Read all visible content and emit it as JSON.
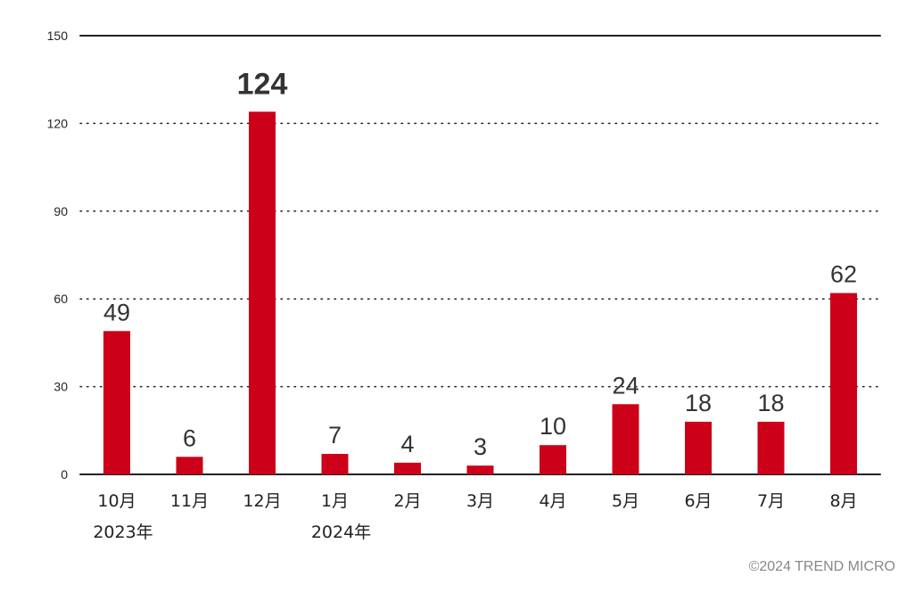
{
  "chart_data": {
    "type": "bar",
    "categories": [
      "10月",
      "11月",
      "12月",
      "1月",
      "2月",
      "3月",
      "4月",
      "5月",
      "6月",
      "7月",
      "8月"
    ],
    "year_labels": [
      {
        "category_index": 0,
        "label": "2023年"
      },
      {
        "category_index": 3,
        "label": "2024年"
      }
    ],
    "values": [
      49,
      6,
      124,
      7,
      4,
      3,
      10,
      24,
      18,
      18,
      62
    ],
    "data_labels": [
      "49",
      "6",
      "124",
      "7",
      "4",
      "3",
      "10",
      "24",
      "18",
      "18",
      "62"
    ],
    "highlight_index": 2,
    "ylim": [
      0,
      150
    ],
    "yticks": [
      0,
      30,
      60,
      90,
      120,
      150
    ],
    "ytick_labels": [
      "0",
      "30",
      "60",
      "90",
      "120",
      "150"
    ],
    "grid": "dotted horizontal",
    "colors": {
      "bar": "#cc0019",
      "highlight_label": "#cc0019",
      "label": "#333333",
      "axis": "#222222"
    }
  },
  "footer": {
    "copyright": "©2024 TREND MICRO"
  }
}
